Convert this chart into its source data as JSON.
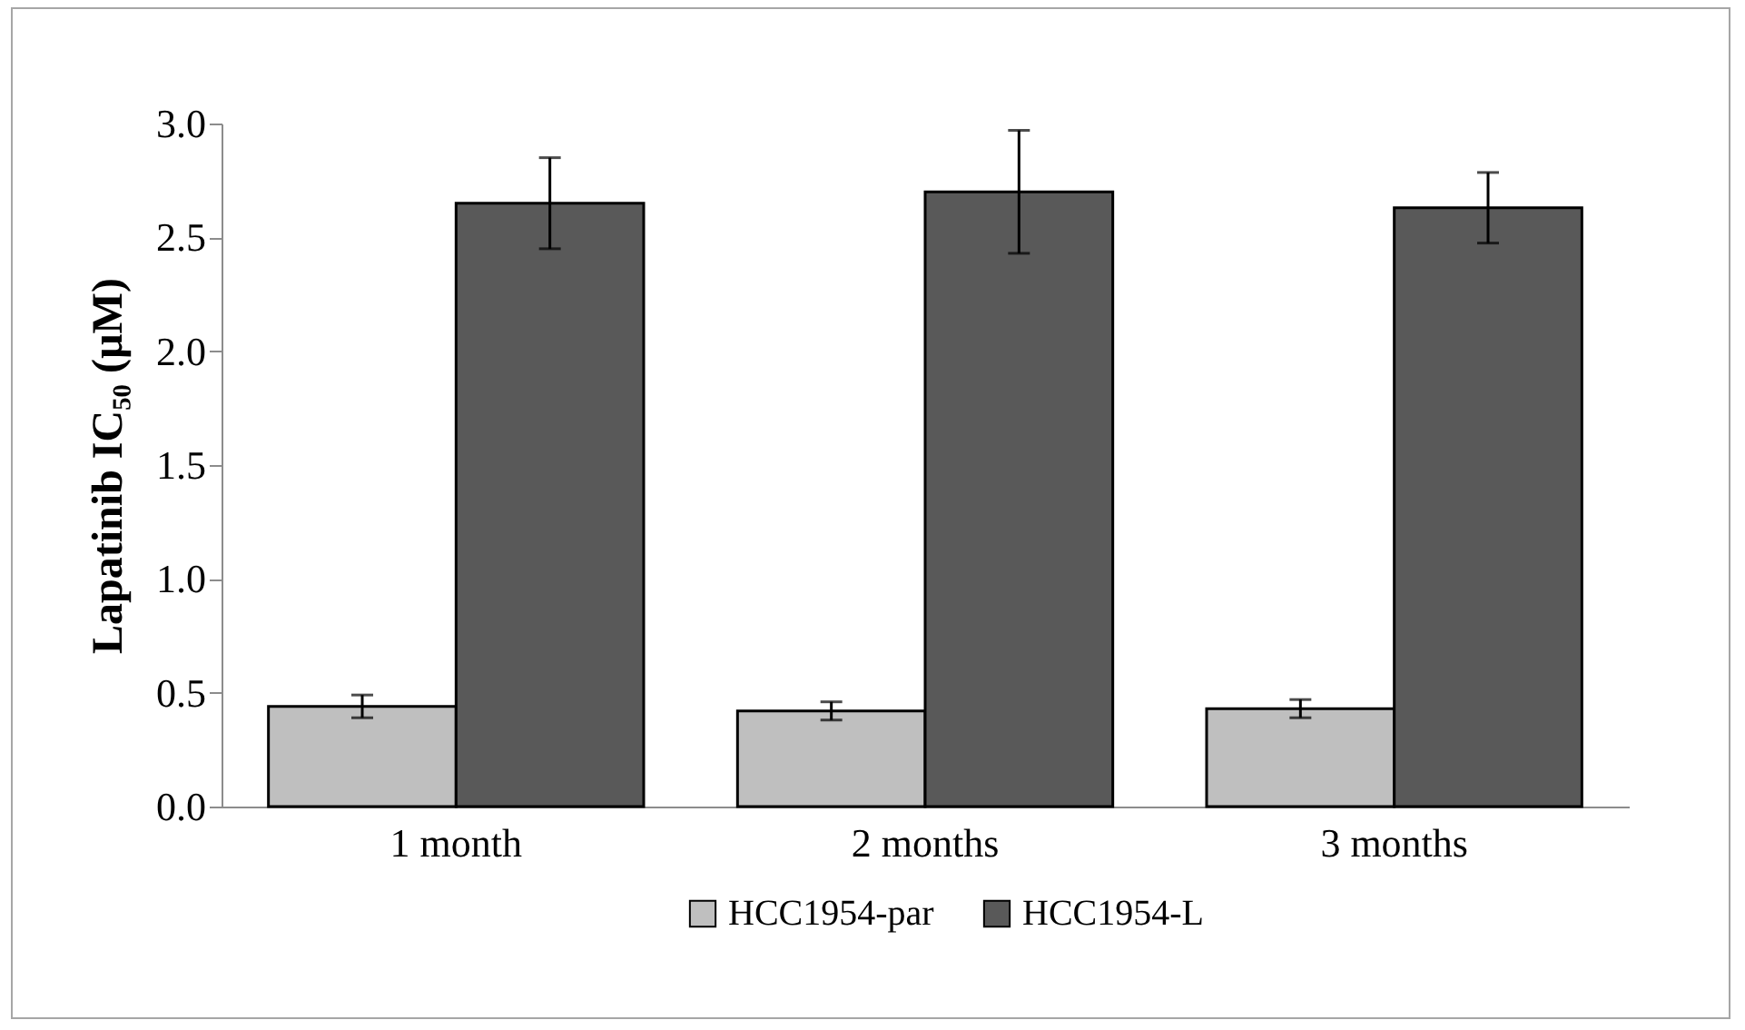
{
  "chart_data": {
    "type": "bar",
    "ylabel": "Lapatinib IC₅₀ (µM)",
    "categories": [
      "1 month",
      "2 months",
      "3 months"
    ],
    "series": [
      {
        "name": "HCC1954-par",
        "color": "#bfbfbf",
        "values": [
          0.44,
          0.42,
          0.43
        ],
        "errors": [
          0.05,
          0.04,
          0.04
        ]
      },
      {
        "name": "HCC1954-L",
        "color": "#595959",
        "values": [
          2.65,
          2.7,
          2.63
        ],
        "errors": [
          0.2,
          0.27,
          0.155
        ]
      }
    ],
    "ylim": [
      0,
      3
    ],
    "yticks": [
      {
        "value": 0,
        "label": "0.0"
      },
      0.5,
      {
        "value": 1,
        "label": "1.0"
      },
      1.5,
      {
        "value": 2,
        "label": "2.0"
      },
      2.5,
      {
        "value": 3,
        "label": "3.0"
      }
    ],
    "grid": false,
    "legend": "bottom"
  }
}
